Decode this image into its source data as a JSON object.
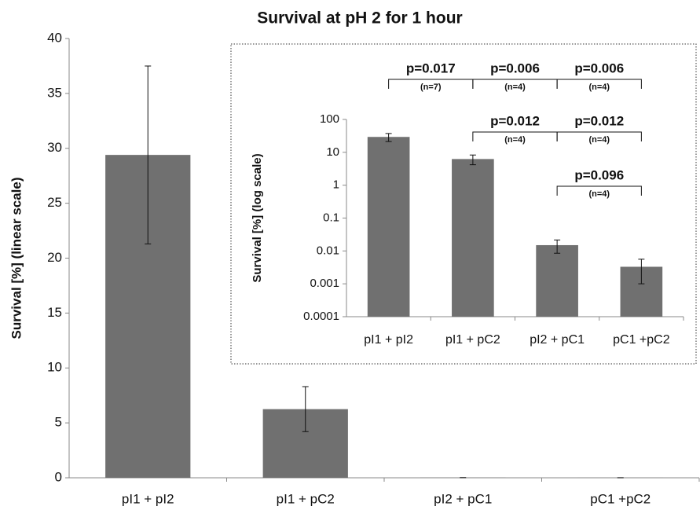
{
  "chart_data": [
    {
      "type": "bar",
      "title": "Survival at pH 2 for 1 hour",
      "y_label": "Survival [%] (linear scale)",
      "categories": [
        "pI1 + pI2",
        "pI1 + pC2",
        "pI2 + pC1",
        "pC1 +pC2"
      ],
      "values": [
        29.4,
        6.25,
        0.015,
        0.0033
      ],
      "errors": [
        8.1,
        2.05,
        0.0065,
        0.0023
      ],
      "color": "#707070",
      "ylim": [
        0,
        40
      ],
      "yticks": [
        0,
        5,
        10,
        15,
        20,
        25,
        30,
        35,
        40
      ],
      "log_scale": false
    },
    {
      "type": "bar",
      "y_label": "Survival [%] (log scale)",
      "categories": [
        "pI1 + pI2",
        "pI1 + pC2",
        "pI2 + pC1",
        "pC1 +pC2"
      ],
      "values": [
        29.4,
        6.25,
        0.015,
        0.0033
      ],
      "errors": [
        8.1,
        2.05,
        0.0065,
        0.0023
      ],
      "color": "#707070",
      "ylim": [
        0.0001,
        100
      ],
      "yticks": [
        0.0001,
        0.001,
        0.01,
        0.1,
        1,
        10,
        100
      ],
      "log_scale": true,
      "comparison_rows": [
        [
          {
            "between": [
              "pI1 + pI2",
              "pI1 + pC2"
            ],
            "p": "p=0.017",
            "n": "(n=7)"
          },
          {
            "between": [
              "pI1 + pC2",
              "pI2 + pC1"
            ],
            "p": "p=0.006",
            "n": "(n=4)"
          },
          {
            "between": [
              "pI2 + pC1",
              "pC1 +pC2"
            ],
            "p": "p=0.006",
            "n": "(n=4)"
          }
        ],
        [
          {
            "between": [
              "pI1 + pC2",
              "pI2 + pC1"
            ],
            "p": "p=0.012",
            "n": "(n=4)"
          },
          {
            "between": [
              "pI2 + pC1",
              "pC1 +pC2"
            ],
            "p": "p=0.012",
            "n": "(n=4)"
          }
        ],
        [
          {
            "between": [
              "pI2 + pC1",
              "pC1 +pC2"
            ],
            "p": "p=0.096",
            "n": "(n=4)"
          }
        ]
      ]
    }
  ]
}
